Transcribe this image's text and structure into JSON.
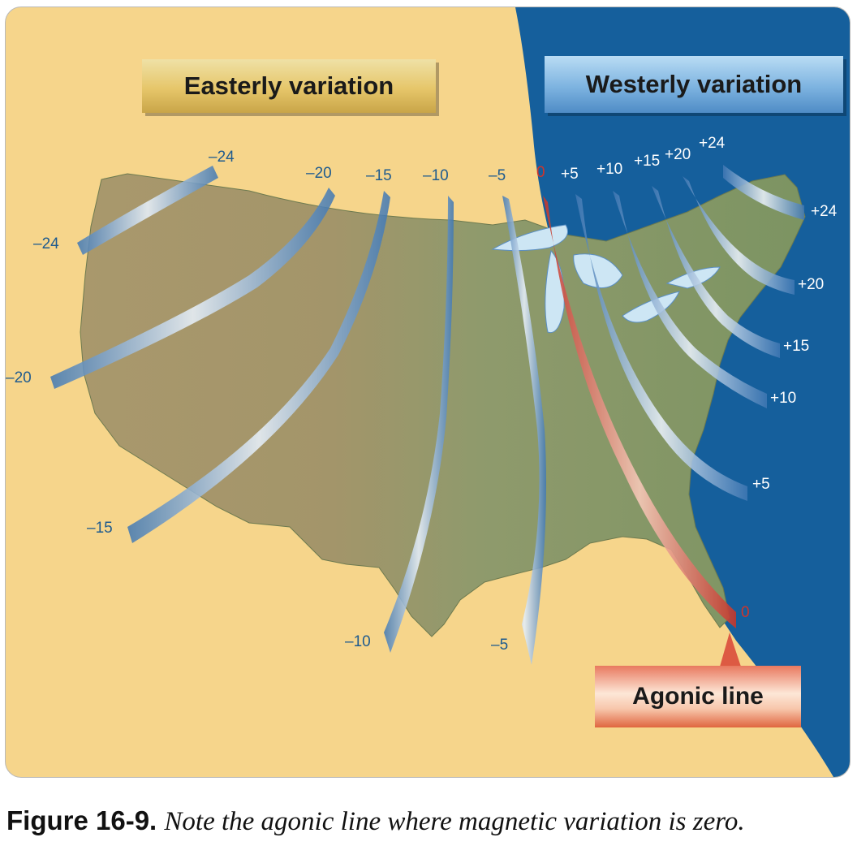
{
  "banners": {
    "east": "Easterly variation",
    "west": "Westerly variation",
    "agonic": "Agonic line"
  },
  "isogonic_labels": {
    "top": [
      "–24",
      "–20",
      "–15",
      "–10",
      "–5",
      "0",
      "+5",
      "+10",
      "+15",
      "+20",
      "+24"
    ],
    "west_end": [
      "–24",
      "–20",
      "–15"
    ],
    "south_end": [
      "–10",
      "–5"
    ],
    "agonic_end": "0",
    "east_end": [
      "+24",
      "+20",
      "+15",
      "+10",
      "+5"
    ]
  },
  "caption": {
    "figure": "Figure 16-9.",
    "text": "Note the agonic line where magnetic variation is zero."
  },
  "colors": {
    "sand": "#f6d58b",
    "ocean": "#155f9c",
    "land": "#8d9a6a",
    "isogonic_band": "#5b8fc4",
    "agonic_band": "#d2453a",
    "east_label": "#1f5b8e"
  }
}
